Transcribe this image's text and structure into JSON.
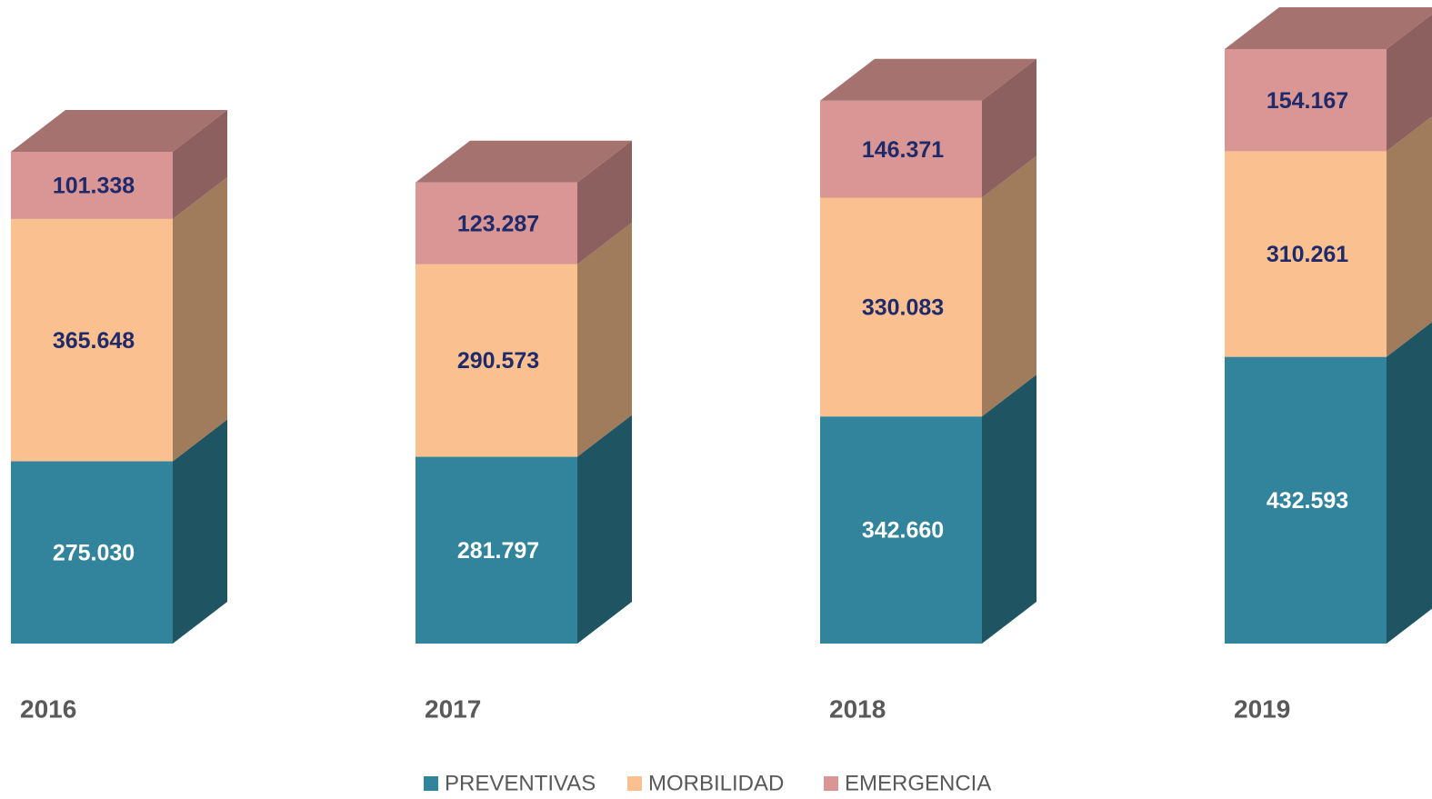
{
  "chart_data": {
    "type": "bar3d_stacked",
    "categories": [
      "2016",
      "2017",
      "2018",
      "2019"
    ],
    "series": [
      {
        "name": "PREVENTIVAS",
        "color": "#31849b",
        "values": [
          275030,
          281797,
          342660,
          432593
        ],
        "value_labels": [
          "275.030",
          "281.797",
          "342.660",
          "432.593"
        ]
      },
      {
        "name": "MORBILIDAD",
        "color": "#fac090",
        "values": [
          365648,
          290573,
          330083,
          310261
        ],
        "value_labels": [
          "365.648",
          "290.573",
          "330.083",
          "310.261"
        ]
      },
      {
        "name": "EMERGENCIA",
        "color": "#d99694",
        "values": [
          101338,
          123287,
          146371,
          154167
        ],
        "value_labels": [
          "101.338",
          "123.287",
          "146.371",
          "154.167"
        ]
      }
    ]
  }
}
